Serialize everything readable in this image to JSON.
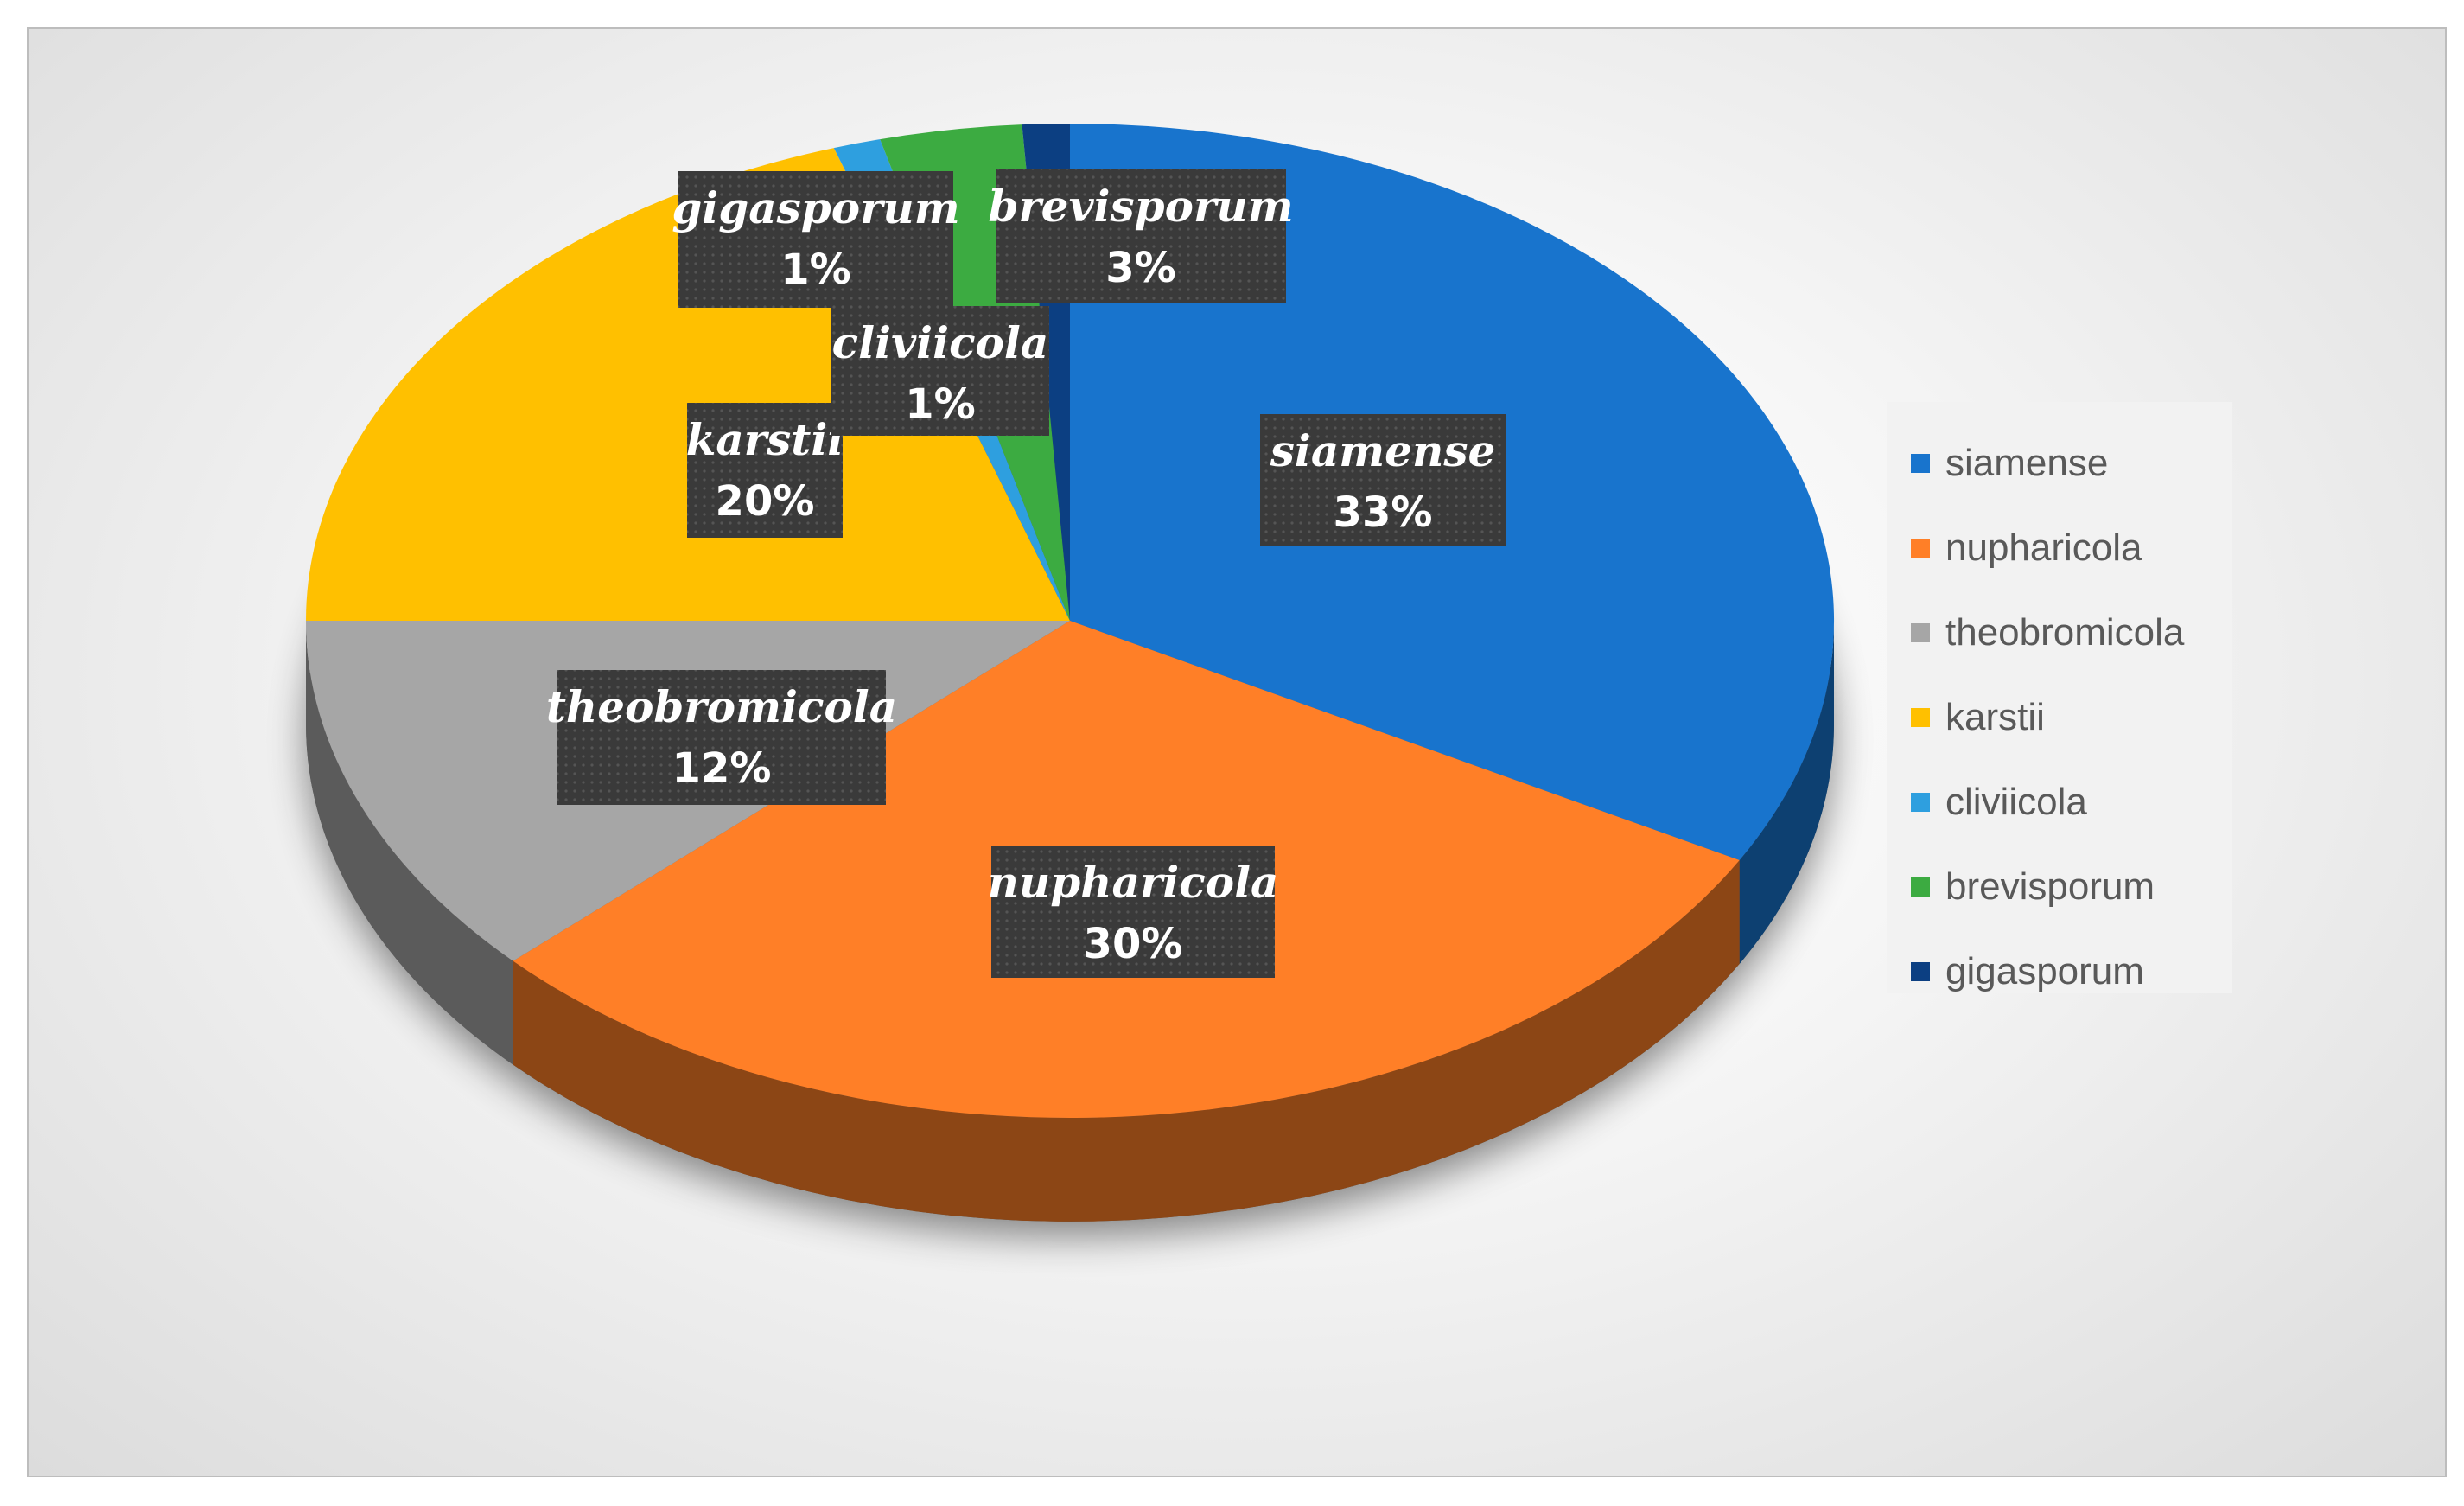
{
  "chart_data": {
    "type": "pie",
    "style": "3d",
    "legend_position": "right",
    "series": [
      {
        "name": "siamense",
        "value": 33,
        "label": "33%",
        "color": "#1874cd"
      },
      {
        "name": "nupharicola",
        "value": 30,
        "label": "30%",
        "color": "#ff7f27"
      },
      {
        "name": "theobromicola",
        "value": 12,
        "label": "12%",
        "color": "#a6a6a6"
      },
      {
        "name": "karstii",
        "value": 20,
        "label": "20%",
        "color": "#ffc000"
      },
      {
        "name": "cliviicola",
        "value": 1,
        "label": "1%",
        "color": "#2e9fdf"
      },
      {
        "name": "brevisporum",
        "value": 3,
        "label": "3%",
        "color": "#3cab41"
      },
      {
        "name": "gigasporum",
        "value": 1,
        "label": "1%",
        "color": "#0c3f82"
      }
    ]
  },
  "legend": {
    "items": [
      {
        "label": "siamense",
        "color": "#1874cd"
      },
      {
        "label": "nupharicola",
        "color": "#ff7f27"
      },
      {
        "label": "theobromicola",
        "color": "#a6a6a6"
      },
      {
        "label": "karstii",
        "color": "#ffc000"
      },
      {
        "label": "cliviicola",
        "color": "#2e9fdf"
      },
      {
        "label": "brevisporum",
        "color": "#3cab41"
      },
      {
        "label": "gigasporum",
        "color": "#0c3f82"
      }
    ]
  }
}
